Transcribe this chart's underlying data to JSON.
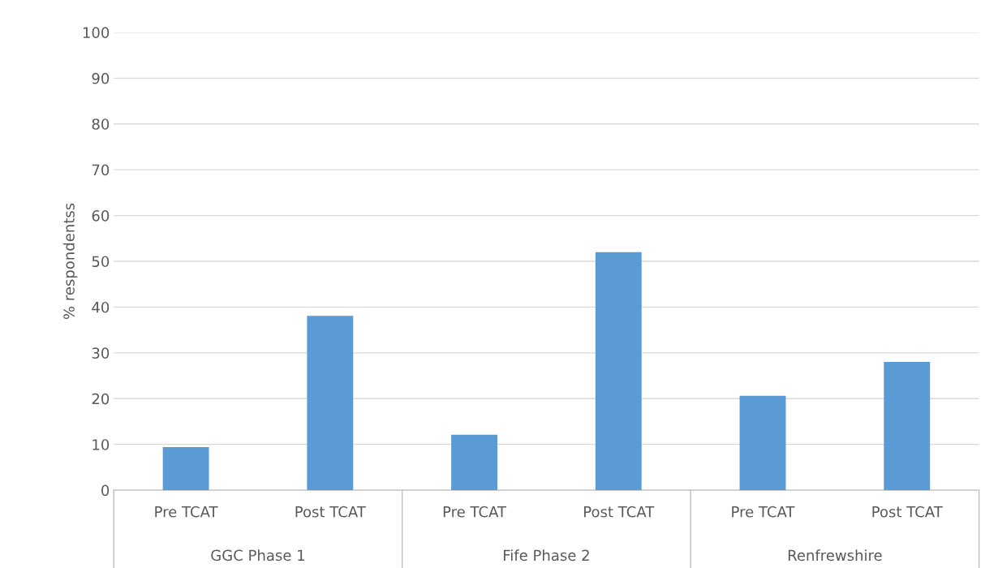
{
  "chart_data": {
    "type": "bar",
    "ylabel": "% respondentss",
    "categories": [
      "Pre TCAT",
      "Post TCAT",
      "Pre TCAT",
      "Post TCAT",
      "Pre TCAT",
      "Post TCAT"
    ],
    "values": [
      9.4,
      38.1,
      12.1,
      52,
      20.6,
      28.0
    ],
    "color": "#5b9bd5",
    "ylim": [
      0,
      100
    ],
    "yticks": [
      0,
      10,
      20,
      30,
      40,
      50,
      60,
      70,
      80,
      90,
      100
    ],
    "grid": "y",
    "annotations": [
      "GGC Phase 1",
      "Fife Phase 2",
      "Renfrewshire"
    ]
  }
}
